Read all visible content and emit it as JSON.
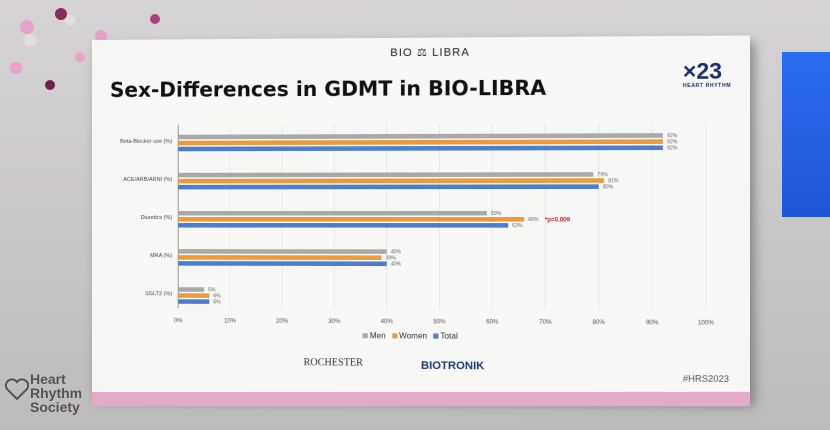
{
  "slide": {
    "header_logo": "BIO ⚖ LIBRA",
    "title": "Sex-Differences in GDMT in BIO-LIBRA",
    "badge": "×23",
    "badge_sub": "HEART RHYTHM",
    "hashtag": "#HRS2023",
    "sponsors": {
      "rochester": "ROCHESTER",
      "biotronik": "BIOTRONIK"
    }
  },
  "venue": {
    "society": [
      "Heart",
      "Rhythm",
      "Society"
    ]
  },
  "colors": {
    "men": "#a9a9a9",
    "women": "#ec9a3a",
    "total": "#4a7fd0",
    "annotation": "#d0202a"
  },
  "chart_data": {
    "type": "bar",
    "orientation": "horizontal",
    "categories": [
      "Beta-Blocker use (%)",
      "ACE/ARB/ARNI (%)",
      "Diuretics (%)",
      "MRA (%)",
      "SGLT2 (%)"
    ],
    "series": [
      {
        "name": "Men",
        "values": [
          92,
          79,
          59,
          40,
          5
        ],
        "labels": [
          "92%",
          "79%",
          "59%",
          "40%",
          "5%"
        ]
      },
      {
        "name": "Women",
        "values": [
          92,
          81,
          66,
          39,
          6
        ],
        "labels": [
          "92%",
          "81%",
          "66%",
          "39%",
          "6%"
        ]
      },
      {
        "name": "Total",
        "values": [
          92,
          80,
          63,
          40,
          6
        ],
        "labels": [
          "92%",
          "80%",
          "63%",
          "40%",
          "6%"
        ]
      }
    ],
    "xlim": [
      0,
      100
    ],
    "xticks": [
      "0%",
      "10%",
      "20%",
      "30%",
      "40%",
      "50%",
      "60%",
      "70%",
      "80%",
      "90%",
      "100%"
    ],
    "annotation": {
      "text": "*p=0.009",
      "category": "Diuretics (%)",
      "series": "Women"
    },
    "legend": "bottom",
    "grid": true
  }
}
